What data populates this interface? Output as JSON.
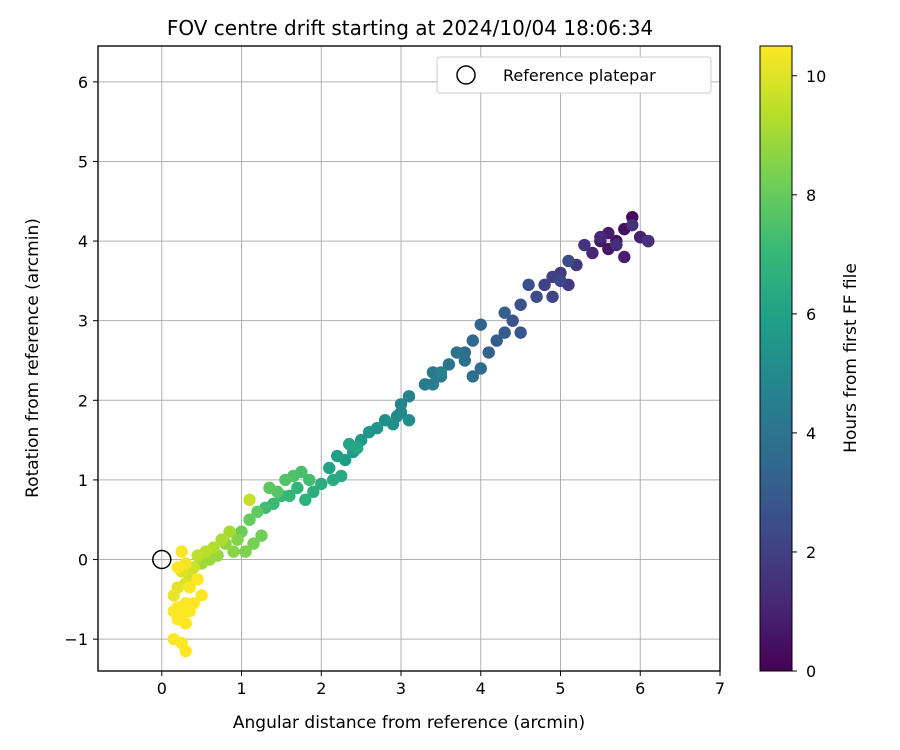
{
  "chart_data": {
    "type": "scatter",
    "title": "FOV centre drift starting at 2024/10/04 18:06:34",
    "xlabel": "Angular distance from reference (arcmin)",
    "ylabel": "Rotation from reference (arcmin)",
    "xlim": [
      -0.8,
      7.0
    ],
    "ylim": [
      -1.4,
      6.45
    ],
    "x_ticks": [
      0,
      1,
      2,
      3,
      4,
      5,
      6,
      7
    ],
    "y_ticks": [
      -1,
      0,
      1,
      2,
      3,
      4,
      5,
      6
    ],
    "grid": true,
    "legend": {
      "position": "top-right",
      "entries": [
        "Reference platepar"
      ]
    },
    "reference_point": {
      "x": 0,
      "y": 0
    },
    "colorbar": {
      "label": "Hours from first FF file",
      "range": [
        0,
        10.5
      ],
      "ticks": [
        0,
        2,
        4,
        6,
        8,
        10
      ],
      "colormap": "viridis",
      "stops": [
        "#440154",
        "#482878",
        "#3e4989",
        "#31688e",
        "#26828e",
        "#1f9e89",
        "#35b779",
        "#6ece58",
        "#b5de2b",
        "#fde725"
      ]
    },
    "series": [
      {
        "x": [
          6.1,
          6.0,
          5.9,
          5.8,
          5.7,
          5.6,
          5.5,
          5.6,
          5.8,
          6.0,
          5.4,
          5.5,
          5.7,
          5.9,
          6.1,
          5.3,
          5.2,
          5.1,
          5.0,
          4.9,
          4.8,
          4.9,
          5.0,
          5.1,
          4.7,
          4.6,
          4.5,
          4.4,
          4.5,
          4.3,
          4.2,
          4.3,
          4.1,
          4.0,
          3.9,
          3.8,
          4.0,
          3.9,
          3.8,
          3.7,
          3.6,
          3.5,
          3.4,
          3.3,
          3.4,
          3.5,
          3.1,
          3.0,
          3.0,
          2.95,
          3.1,
          2.9,
          2.8,
          2.7,
          2.6,
          2.5,
          2.4,
          2.3,
          2.2,
          2.1,
          2.35,
          2.45,
          2.25,
          2.15,
          2.0,
          1.9,
          1.8,
          1.7,
          1.6,
          1.5,
          1.4,
          1.3,
          1.85,
          1.75,
          1.65,
          1.55,
          1.45,
          1.35,
          1.2,
          1.1,
          1.0,
          1.25,
          1.15,
          1.05,
          0.95,
          0.9,
          0.8,
          0.7,
          0.6,
          0.5,
          0.85,
          0.75,
          0.65,
          0.55,
          0.45,
          1.1,
          0.4,
          0.35,
          0.3,
          0.25,
          0.2,
          0.15,
          0.3,
          0.25,
          0.2,
          0.35,
          0.45,
          0.5,
          0.3,
          0.2,
          0.15,
          0.25,
          0.35,
          0.4,
          0.3,
          0.2,
          0.15,
          0.25,
          0.3
        ],
        "y": [
          4.0,
          4.05,
          4.3,
          4.15,
          4.0,
          3.9,
          4.0,
          4.1,
          3.8,
          4.05,
          3.85,
          4.05,
          3.95,
          4.2,
          4.0,
          3.95,
          3.7,
          3.45,
          3.6,
          3.55,
          3.45,
          3.3,
          3.5,
          3.75,
          3.3,
          3.45,
          3.2,
          3.0,
          2.85,
          2.85,
          2.75,
          3.1,
          2.6,
          2.95,
          2.75,
          2.6,
          2.4,
          2.3,
          2.5,
          2.6,
          2.45,
          2.3,
          2.35,
          2.2,
          2.2,
          2.35,
          2.05,
          1.95,
          1.85,
          1.8,
          1.75,
          1.7,
          1.75,
          1.65,
          1.6,
          1.5,
          1.35,
          1.25,
          1.3,
          1.15,
          1.45,
          1.4,
          1.05,
          1.0,
          0.95,
          0.85,
          0.75,
          0.9,
          0.8,
          0.8,
          0.7,
          0.65,
          1.0,
          1.1,
          1.05,
          1.0,
          0.85,
          0.9,
          0.6,
          0.5,
          0.35,
          0.3,
          0.2,
          0.1,
          0.25,
          0.1,
          0.2,
          0.05,
          0.0,
          -0.05,
          0.35,
          0.25,
          0.15,
          0.1,
          0.05,
          0.75,
          -0.1,
          -0.2,
          -0.3,
          -0.15,
          -0.35,
          -0.45,
          -0.05,
          0.1,
          -0.1,
          -0.35,
          -0.25,
          -0.45,
          -0.55,
          -0.6,
          -0.65,
          -0.7,
          -0.65,
          -0.55,
          -0.8,
          -0.75,
          -1.0,
          -1.05,
          -1.15
        ],
        "hours": [
          0.1,
          0.2,
          0.3,
          0.4,
          0.5,
          0.6,
          0.7,
          0.8,
          0.9,
          1.0,
          1.1,
          1.2,
          1.3,
          1.4,
          1.5,
          1.6,
          1.7,
          1.8,
          1.9,
          2.0,
          2.1,
          2.2,
          2.3,
          2.4,
          2.5,
          2.6,
          2.7,
          2.8,
          2.9,
          3.0,
          3.1,
          3.2,
          3.3,
          3.4,
          3.5,
          3.6,
          3.7,
          3.8,
          3.9,
          4.0,
          4.1,
          4.2,
          4.3,
          4.4,
          4.5,
          4.6,
          4.7,
          4.8,
          4.9,
          5.0,
          5.1,
          5.2,
          5.3,
          5.4,
          5.5,
          5.6,
          5.7,
          5.8,
          5.9,
          6.0,
          6.1,
          6.2,
          6.3,
          6.4,
          6.5,
          6.6,
          6.7,
          6.8,
          6.9,
          7.0,
          7.1,
          7.2,
          7.3,
          7.4,
          7.5,
          7.6,
          7.7,
          7.8,
          7.9,
          8.0,
          8.1,
          8.2,
          8.3,
          8.4,
          8.5,
          8.6,
          8.7,
          8.8,
          8.9,
          9.0,
          9.1,
          9.2,
          9.3,
          9.4,
          9.5,
          9.6,
          9.7,
          9.8,
          9.9,
          10.0,
          10.1,
          10.2,
          10.3,
          10.4,
          10.5,
          10.5,
          10.5,
          10.5,
          10.5,
          10.5,
          10.5,
          10.5,
          10.5,
          10.5,
          10.5,
          10.5,
          10.5,
          10.5,
          10.5
        ]
      }
    ]
  }
}
